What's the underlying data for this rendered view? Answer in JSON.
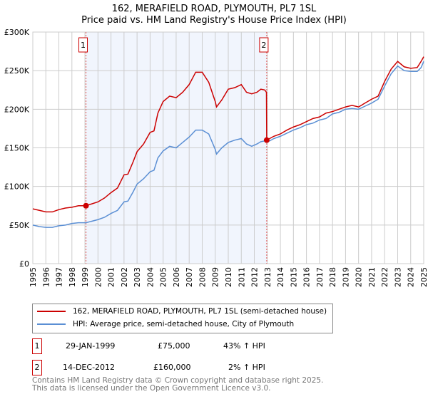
{
  "title": "162, MERAFIELD ROAD, PLYMOUTH, PL7 1SL",
  "subtitle": "Price paid vs. HM Land Registry's House Price Index (HPI)",
  "chart_data": {
    "type": "line",
    "title": "162, MERAFIELD ROAD, PLYMOUTH, PL7 1SL",
    "subtitle": "Price paid vs. HM Land Registry's House Price Index (HPI)",
    "xlim": [
      1995,
      2025
    ],
    "ylim": [
      0,
      300000
    ],
    "yticks": [
      0,
      50000,
      100000,
      150000,
      200000,
      250000,
      300000
    ],
    "ytick_labels": [
      "£0",
      "£50K",
      "£100K",
      "£150K",
      "£200K",
      "£250K",
      "£300K"
    ],
    "xticks": [
      "1995",
      "1996",
      "1997",
      "1998",
      "1999",
      "2000",
      "2001",
      "2002",
      "2003",
      "2004",
      "2005",
      "2006",
      "2007",
      "2008",
      "2009",
      "2010",
      "2011",
      "2012",
      "2013",
      "2014",
      "2015",
      "2016",
      "2017",
      "2018",
      "2019",
      "2020",
      "2021",
      "2022",
      "2023",
      "2024",
      "2025"
    ],
    "grid": true,
    "shaded_range": [
      1999.08,
      2012.95
    ],
    "series": [
      {
        "name": "162, MERAFIELD ROAD, PLYMOUTH, PL7 1SL (semi-detached house)",
        "color": "#cc0000",
        "x": [
          1995,
          1995.5,
          1996,
          1996.5,
          1997,
          1997.5,
          1998,
          1998.5,
          1999.08,
          2000,
          2000.5,
          2001,
          2001.5,
          2002,
          2002.3,
          2002.7,
          2003,
          2003.5,
          2004,
          2004.3,
          2004.6,
          2005,
          2005.5,
          2006,
          2006.5,
          2007,
          2007.5,
          2008,
          2008.5,
          2009,
          2009.1,
          2009.5,
          2010,
          2010.5,
          2011,
          2011.4,
          2011.8,
          2012.2,
          2012.5,
          2012.8,
          2012.93,
          2012.95,
          2013.5,
          2014,
          2014.5,
          2015,
          2015.5,
          2016,
          2016.5,
          2017,
          2017.5,
          2018,
          2018.5,
          2019,
          2019.5,
          2020,
          2020.5,
          2021,
          2021.5,
          2022,
          2022.5,
          2023,
          2023.5,
          2024,
          2024.5,
          2024.8,
          2025
        ],
        "y": [
          71000,
          69000,
          67000,
          67000,
          70000,
          72000,
          73000,
          75000,
          75000,
          80000,
          85000,
          92000,
          98000,
          115000,
          116000,
          132000,
          145000,
          155000,
          170000,
          172000,
          195000,
          210000,
          217000,
          215000,
          222000,
          232000,
          248000,
          248000,
          235000,
          210000,
          203000,
          212000,
          226000,
          228000,
          232000,
          222000,
          220000,
          222000,
          226000,
          225000,
          222000,
          160000,
          165000,
          168000,
          173000,
          177000,
          180000,
          184000,
          188000,
          190000,
          195000,
          197000,
          200000,
          203000,
          205000,
          203000,
          208000,
          213000,
          217000,
          236000,
          252000,
          262000,
          255000,
          253000,
          254000,
          262000,
          268000
        ]
      },
      {
        "name": "HPI: Average price, semi-detached house, City of Plymouth",
        "color": "#5b8fd4",
        "x": [
          1995,
          1995.5,
          1996,
          1996.5,
          1997,
          1997.5,
          1998,
          1998.5,
          1999.08,
          2000,
          2000.5,
          2001,
          2001.5,
          2002,
          2002.3,
          2002.7,
          2003,
          2003.5,
          2004,
          2004.3,
          2004.6,
          2005,
          2005.5,
          2006,
          2006.5,
          2007,
          2007.5,
          2008,
          2008.5,
          2009,
          2009.1,
          2009.5,
          2010,
          2010.5,
          2011,
          2011.4,
          2011.8,
          2012.2,
          2012.5,
          2012.8,
          2012.95,
          2013.5,
          2014,
          2014.5,
          2015,
          2015.5,
          2016,
          2016.5,
          2017,
          2017.5,
          2018,
          2018.5,
          2019,
          2019.5,
          2020,
          2020.5,
          2021,
          2021.5,
          2022,
          2022.5,
          2023,
          2023.5,
          2024,
          2024.5,
          2024.8,
          2025
        ],
        "y": [
          50000,
          48000,
          47000,
          47000,
          49000,
          50000,
          52000,
          53000,
          53000,
          57000,
          60000,
          65000,
          69000,
          80000,
          81000,
          93000,
          103000,
          110000,
          119000,
          121000,
          137000,
          146000,
          152000,
          150000,
          157000,
          164000,
          173000,
          173000,
          168000,
          148000,
          142000,
          150000,
          157000,
          160000,
          162000,
          155000,
          152000,
          155000,
          158000,
          159000,
          157000,
          162000,
          165000,
          169000,
          173000,
          176000,
          180000,
          182000,
          186000,
          188000,
          194000,
          196000,
          200000,
          201000,
          200000,
          204000,
          208000,
          213000,
          230000,
          246000,
          256000,
          250000,
          249000,
          249000,
          254000,
          262000
        ]
      }
    ],
    "markers": [
      {
        "label": "1",
        "x": 1999.08,
        "y": 75000
      },
      {
        "label": "2",
        "x": 2012.95,
        "y": 160000
      }
    ]
  },
  "legend": {
    "red": "162, MERAFIELD ROAD, PLYMOUTH, PL7 1SL (semi-detached house)",
    "blue": "HPI: Average price, semi-detached house, City of Plymouth"
  },
  "transactions": [
    {
      "num": "1",
      "date": "29-JAN-1999",
      "price": "£75,000",
      "hpi": "43% ↑ HPI"
    },
    {
      "num": "2",
      "date": "14-DEC-2012",
      "price": "£160,000",
      "hpi": "2% ↑ HPI"
    }
  ],
  "footer": {
    "line1": "Contains HM Land Registry data © Crown copyright and database right 2025.",
    "line2": "This data is licensed under the Open Government Licence v3.0."
  }
}
